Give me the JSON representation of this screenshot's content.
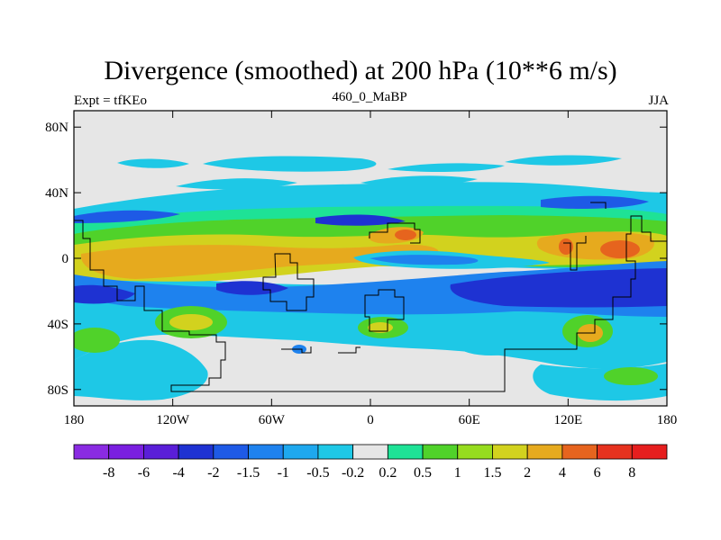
{
  "title": "Divergence (smoothed) at 200 hPa (10**6 m/s)",
  "subtitle_left": "Expt = tfKEo",
  "subtitle_center": "460_0_MaBP",
  "subtitle_right": "JJA",
  "map": {
    "lon_range": [
      -180,
      180
    ],
    "lat_range": [
      -90,
      90
    ],
    "lon_ticks": [
      {
        "value": -180,
        "label": "180"
      },
      {
        "value": -120,
        "label": "120W"
      },
      {
        "value": -60,
        "label": "60W"
      },
      {
        "value": 0,
        "label": "0"
      },
      {
        "value": 60,
        "label": "60E"
      },
      {
        "value": 120,
        "label": "120E"
      },
      {
        "value": 180,
        "label": "180"
      }
    ],
    "lat_ticks": [
      {
        "value": 80,
        "label": "80N"
      },
      {
        "value": 40,
        "label": "40N"
      },
      {
        "value": 0,
        "label": "0"
      },
      {
        "value": -40,
        "label": "40S"
      },
      {
        "value": -80,
        "label": "80S"
      }
    ]
  },
  "colorbar": {
    "colors": [
      "#8a2be2",
      "#7a1fe0",
      "#5a1ed8",
      "#1e32d2",
      "#1e5ae6",
      "#1e82ee",
      "#1ea8ee",
      "#1ec8e6",
      "#e6e6e6",
      "#1ee296",
      "#50d22a",
      "#96dc1e",
      "#d2d21e",
      "#e6aa1e",
      "#e6641e",
      "#e6321e",
      "#e61e1e"
    ],
    "labels": [
      "-8",
      "-6",
      "-4",
      "-2",
      "-1.5",
      "-1",
      "-0.5",
      "-0.2",
      "0.2",
      "0.5",
      "1",
      "1.5",
      "2",
      "4",
      "6",
      "8"
    ]
  }
}
